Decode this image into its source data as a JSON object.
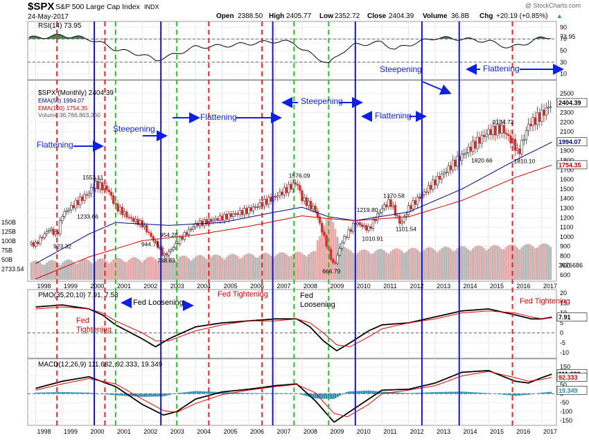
{
  "header": {
    "symbol": "$SPX",
    "name": "S&P 500 Large Cap Index",
    "exchange": "INDX",
    "date": "24-May-2017",
    "watermark": "@ StockCharts.com",
    "open_label": "Open",
    "open": "2388.50",
    "high_label": "High",
    "high": "2405.77",
    "low_label": "Low",
    "low": "2352.72",
    "close_label": "Close",
    "close": "2404.39",
    "volume_label": "Volume",
    "volume": "36.8B",
    "chg_label": "Chg",
    "chg": "+20.19 (+0.85%)"
  },
  "colors": {
    "blue_line": "#1010d0",
    "red_line": "#e02020",
    "green_line": "#20c020",
    "arrow": "#1020e0",
    "up_candle": "#333333",
    "down_candle": "#d03030",
    "ema50": "#000080",
    "ema100": "#cc0000",
    "volume_up": "#b0b0b0",
    "volume_down": "#e8a0a0",
    "pmo": "#000000",
    "pmo_signal": "#dd0000",
    "hist": "#2a8ab0",
    "rsi_fill": "#2f6f3f"
  },
  "chart_data": [
    {
      "type": "line",
      "panel": "rsi",
      "title": "RSI(14) 73.95",
      "yticks": [
        90,
        70,
        50,
        30,
        10
      ],
      "reference_lines": [
        70,
        30
      ],
      "ylim": [
        0,
        100
      ],
      "last_value_label": "73.95",
      "series": [
        {
          "name": "RSI(14)",
          "x": [
            1998,
            1999,
            2000,
            2000.5,
            2001,
            2002,
            2002.5,
            2003,
            2004,
            2005,
            2006,
            2007,
            2007.7,
            2008,
            2008.5,
            2009,
            2009.5,
            2010,
            2011,
            2011.5,
            2012,
            2013,
            2014,
            2015,
            2015.8,
            2016,
            2016.5,
            2017,
            2017.4
          ],
          "values": [
            72,
            76,
            70,
            62,
            52,
            43,
            34,
            40,
            56,
            58,
            62,
            66,
            64,
            52,
            40,
            27,
            48,
            60,
            64,
            52,
            60,
            72,
            70,
            66,
            55,
            57,
            64,
            72,
            74
          ]
        }
      ]
    },
    {
      "type": "candlestick",
      "panel": "price",
      "title": "$SPX (Monthly) 2404.39",
      "legend": [
        {
          "name": "EMA(50) 1994.07"
        },
        {
          "name": "EMA(100) 1754.35"
        },
        {
          "name": "Volume 36,766,863,360"
        }
      ],
      "ylim": [
        550,
        2550
      ],
      "yticks": [
        600,
        700,
        800,
        900,
        1000,
        1100,
        1200,
        1300,
        1400,
        1500,
        1600,
        1700,
        1800,
        1900,
        2000,
        2100,
        2200,
        2300,
        2400,
        2500
      ],
      "volume_ticks": [
        "150B",
        "125B",
        "100B",
        "75B",
        "50B",
        "2733.54"
      ],
      "x_ticks": [
        "1998",
        "1999",
        "2000",
        "2001",
        "2002",
        "2003",
        "2004",
        "2005",
        "2006",
        "2007",
        "2008",
        "2009",
        "2010",
        "2011",
        "2012",
        "2013",
        "2014",
        "2015",
        "2016",
        "2017"
      ],
      "price_path": {
        "x": [
          1998,
          1998.5,
          1998.8,
          1999,
          1999.5,
          2000,
          2000.2,
          2000.7,
          2001,
          2001.5,
          2002,
          2002.6,
          2002.8,
          2003,
          2003.5,
          2004,
          2005,
          2006,
          2007,
          2007.8,
          2008,
          2008.5,
          2009,
          2009.2,
          2009.5,
          2010,
          2010.5,
          2011,
          2011.3,
          2011.7,
          2012,
          2013,
          2014,
          2015,
          2015.5,
          2016,
          2016.1,
          2016.5,
          2017,
          2017.4
        ],
        "values": [
          923,
          1080,
          1020,
          1233,
          1350,
          1460,
          1553,
          1500,
          1320,
          1200,
          1130,
          900,
          800,
          840,
          1000,
          1130,
          1200,
          1280,
          1420,
          1570,
          1400,
          1280,
          850,
          690,
          950,
          1150,
          1080,
          1300,
          1370,
          1130,
          1300,
          1580,
          1850,
          2100,
          2134,
          1950,
          1860,
          2170,
          2280,
          2404
        ]
      },
      "ema50": {
        "x": [
          1998,
          2000,
          2001,
          2003,
          2005,
          2007,
          2008,
          2009,
          2010,
          2012,
          2014,
          2016,
          2017.4
        ],
        "values": [
          720,
          1030,
          1150,
          1120,
          1150,
          1260,
          1310,
          1210,
          1170,
          1260,
          1500,
          1800,
          1994
        ]
      },
      "ema100": {
        "x": [
          1998,
          2000,
          2002,
          2004,
          2006,
          2008,
          2009,
          2010,
          2012,
          2014,
          2016,
          2017.4
        ],
        "values": [
          560,
          790,
          960,
          1020,
          1110,
          1220,
          1190,
          1170,
          1210,
          1380,
          1620,
          1754
        ]
      },
      "annotations": [
        "923.32",
        "1553.11",
        "1233.66",
        "944.75",
        "954.28",
        "768.63",
        "1576.09",
        "666.79",
        "1219.80",
        "1010.91",
        "1370.58",
        "1101.54",
        "2134.72",
        "1820.66",
        "1810.10"
      ],
      "last_price_label": "2404.39",
      "ema50_label": "1994.07",
      "ema100_label": "1754.35",
      "volume_label": "3676686"
    },
    {
      "type": "line",
      "panel": "pmo",
      "title": "PMO(35,20,10) 7.91, 7.58",
      "ylim": [
        -12,
        21
      ],
      "yticks": [
        20,
        15,
        10,
        5,
        0,
        -5,
        -10
      ],
      "last_value_label": "7.91",
      "series": [
        {
          "name": "PMO",
          "x": [
            1998,
            1999,
            2000,
            2000.5,
            2001,
            2002,
            2002.5,
            2003,
            2004,
            2005,
            2006,
            2007,
            2007.8,
            2008.3,
            2008.8,
            2009.3,
            2009.8,
            2010.5,
            2011,
            2012,
            2013,
            2014,
            2015,
            2016,
            2016.6,
            2017,
            2017.4
          ],
          "values": [
            13,
            14,
            12,
            9,
            4,
            -3,
            -7,
            -3,
            3,
            5,
            6,
            7,
            7,
            3,
            -4,
            -9,
            -5,
            1,
            4,
            5,
            8,
            11,
            12,
            9,
            7,
            7,
            7.9
          ]
        },
        {
          "name": "Signal",
          "x": [
            1998,
            1999,
            2000,
            2000.5,
            2001,
            2002,
            2002.5,
            2003,
            2004,
            2005,
            2006,
            2007,
            2007.8,
            2008.3,
            2008.8,
            2009.3,
            2009.8,
            2010.5,
            2011,
            2012,
            2013,
            2014,
            2015,
            2016,
            2016.6,
            2017,
            2017.4
          ],
          "values": [
            12,
            13,
            12,
            10,
            6,
            0,
            -4,
            -4,
            1,
            4,
            6,
            6,
            7,
            5,
            0,
            -6,
            -7,
            -2,
            2,
            5,
            7,
            10,
            11,
            10,
            8,
            7,
            7.6
          ]
        }
      ]
    },
    {
      "type": "line",
      "panel": "macd",
      "title": "MACD(12,26,9) 111.682, 92.333, 19.349",
      "ylim": [
        -170,
        180
      ],
      "yticks": [
        150,
        100,
        50,
        0,
        -50,
        -100,
        -150
      ],
      "value_labels": [
        "111.682",
        "92.333",
        "19.349"
      ],
      "series": [
        {
          "name": "MACD",
          "x": [
            1998,
            1999,
            2000,
            2001,
            2002,
            2002.8,
            2003.3,
            2004,
            2005,
            2006,
            2007,
            2007.8,
            2008.5,
            2009.2,
            2009.7,
            2010.5,
            2011,
            2012,
            2013,
            2014,
            2015,
            2016,
            2016.5,
            2017,
            2017.4
          ],
          "values": [
            30,
            70,
            95,
            40,
            -60,
            -120,
            -100,
            -30,
            10,
            25,
            45,
            55,
            -40,
            -160,
            -110,
            -30,
            20,
            25,
            60,
            120,
            130,
            70,
            60,
            90,
            111
          ]
        },
        {
          "name": "Signal",
          "x": [
            1998,
            1999,
            2000,
            2001,
            2002,
            2002.8,
            2003.3,
            2004,
            2005,
            2006,
            2007,
            2007.8,
            2008.5,
            2009.2,
            2009.7,
            2010.5,
            2011,
            2012,
            2013,
            2014,
            2015,
            2016,
            2016.5,
            2017,
            2017.4
          ],
          "values": [
            20,
            55,
            85,
            55,
            -30,
            -95,
            -105,
            -55,
            -5,
            20,
            40,
            52,
            5,
            -110,
            -130,
            -60,
            0,
            20,
            45,
            100,
            125,
            90,
            70,
            80,
            92
          ]
        }
      ]
    }
  ],
  "vertical_lines": [
    {
      "x": 1998.8,
      "color": "red"
    },
    {
      "x": 2000.2,
      "color": "blue"
    },
    {
      "x": 2000.6,
      "color": "red"
    },
    {
      "x": 2001.0,
      "color": "green"
    },
    {
      "x": 2002.7,
      "color": "blue"
    },
    {
      "x": 2003.3,
      "color": "green"
    },
    {
      "x": 2004.5,
      "color": "red"
    },
    {
      "x": 2006.5,
      "color": "red"
    },
    {
      "x": 2006.9,
      "color": "blue"
    },
    {
      "x": 2007.7,
      "color": "green"
    },
    {
      "x": 2009.0,
      "color": "green"
    },
    {
      "x": 2010.0,
      "color": "blue"
    },
    {
      "x": 2012.5,
      "color": "blue"
    },
    {
      "x": 2013.9,
      "color": "blue"
    },
    {
      "x": 2015.9,
      "color": "red"
    }
  ],
  "text_annotations": [
    {
      "text": "Flattening"
    },
    {
      "text": "Steepening"
    },
    {
      "text": "Flattening"
    },
    {
      "text": "Steepening"
    },
    {
      "text": "Flattening"
    },
    {
      "text": "Steepening"
    },
    {
      "text": "Flattening"
    },
    {
      "text": "Fed Loosening"
    },
    {
      "text": "Fed Tightening"
    },
    {
      "text": "Fed"
    },
    {
      "text": "Tightening"
    },
    {
      "text": "Fed"
    },
    {
      "text": "Loosening"
    },
    {
      "text": "Fed Tightening"
    }
  ]
}
